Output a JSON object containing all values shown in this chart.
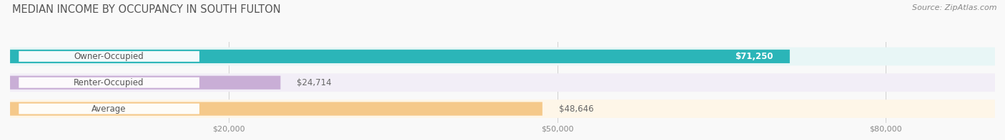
{
  "title": "MEDIAN INCOME BY OCCUPANCY IN SOUTH FULTON",
  "source": "Source: ZipAtlas.com",
  "categories": [
    "Owner-Occupied",
    "Renter-Occupied",
    "Average"
  ],
  "values": [
    71250,
    24714,
    48646
  ],
  "labels": [
    "$71,250",
    "$24,714",
    "$48,646"
  ],
  "bar_colors": [
    "#2bb5b8",
    "#c9aed6",
    "#f5c98a"
  ],
  "bar_bg_colors": [
    "#e8f6f6",
    "#f2eef7",
    "#fef6e8"
  ],
  "x_max": 90000,
  "x_ticks": [
    20000,
    50000,
    80000
  ],
  "x_tick_labels": [
    "$20,000",
    "$50,000",
    "$80,000"
  ],
  "background_color": "#f9f9f9",
  "title_fontsize": 10.5,
  "source_fontsize": 8,
  "bar_label_fontsize": 8.5,
  "category_fontsize": 8.5,
  "label_inside_threshold": 0.6
}
